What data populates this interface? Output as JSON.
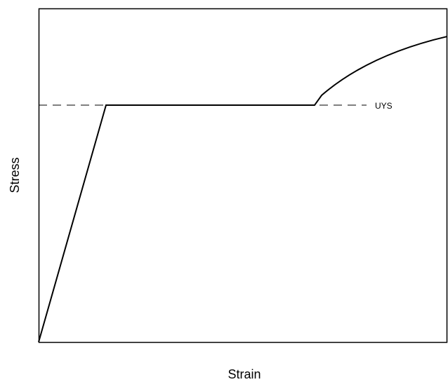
{
  "y_axis_label": "Stress",
  "x_axis_label": "Strain",
  "annotation": "UYS"
}
